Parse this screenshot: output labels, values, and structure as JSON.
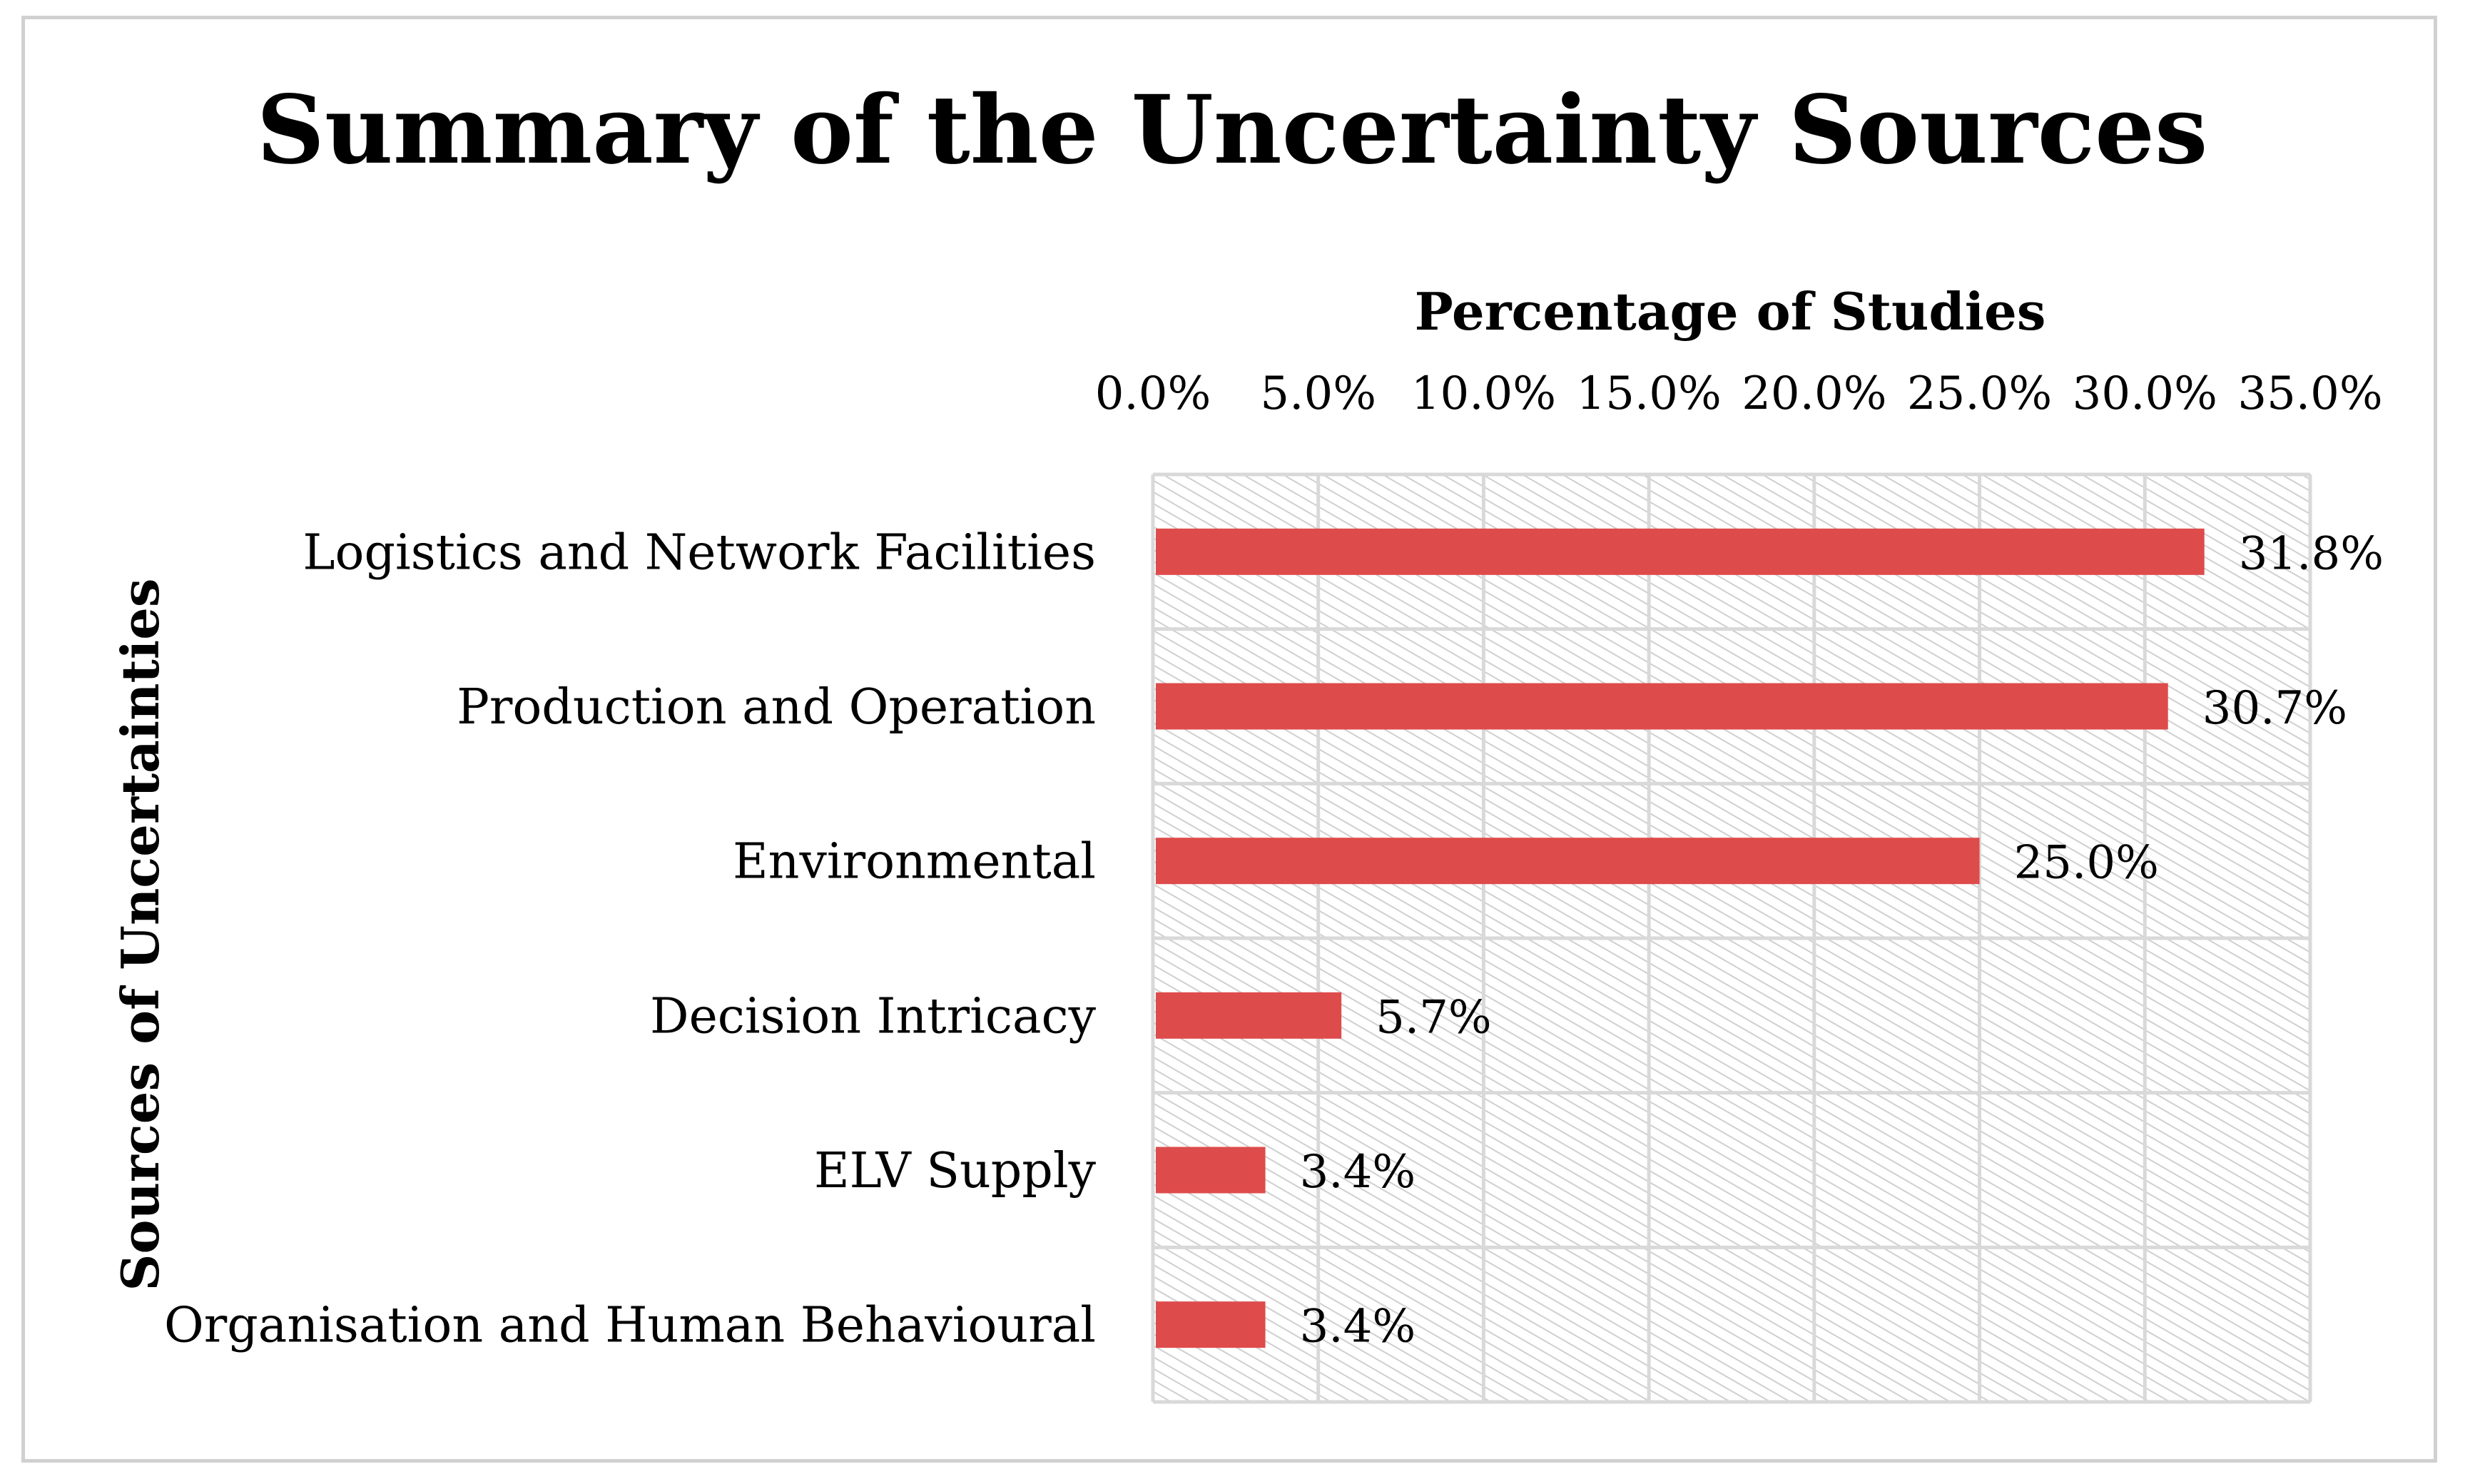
{
  "chart_data": {
    "type": "bar",
    "orientation": "horizontal",
    "title": "Summary of the Uncertainty Sources",
    "xlabel": "Percentage of Studies",
    "ylabel": "Sources of Uncertainties",
    "xlim": [
      0,
      35
    ],
    "x_ticks": [
      "0.0%",
      "5.0%",
      "10.0%",
      "15.0%",
      "20.0%",
      "25.0%",
      "30.0%",
      "35.0%"
    ],
    "x_axis_position": "top",
    "grid": true,
    "categories": [
      "Logistics and Network Facilities",
      "Production and Operation",
      "Environmental",
      "Decision Intricacy",
      "ELV Supply",
      "Organisation and Human Behavioural"
    ],
    "values": [
      31.8,
      30.7,
      25.0,
      5.7,
      3.4,
      3.4
    ],
    "data_labels": [
      "31.8%",
      "30.7%",
      "25.0%",
      "5.7%",
      "3.4%",
      "3.4%"
    ],
    "bar_color": "#de4b4b",
    "grid_color": "#d9d9d9",
    "plot_pattern": "diagonal-hatch"
  }
}
